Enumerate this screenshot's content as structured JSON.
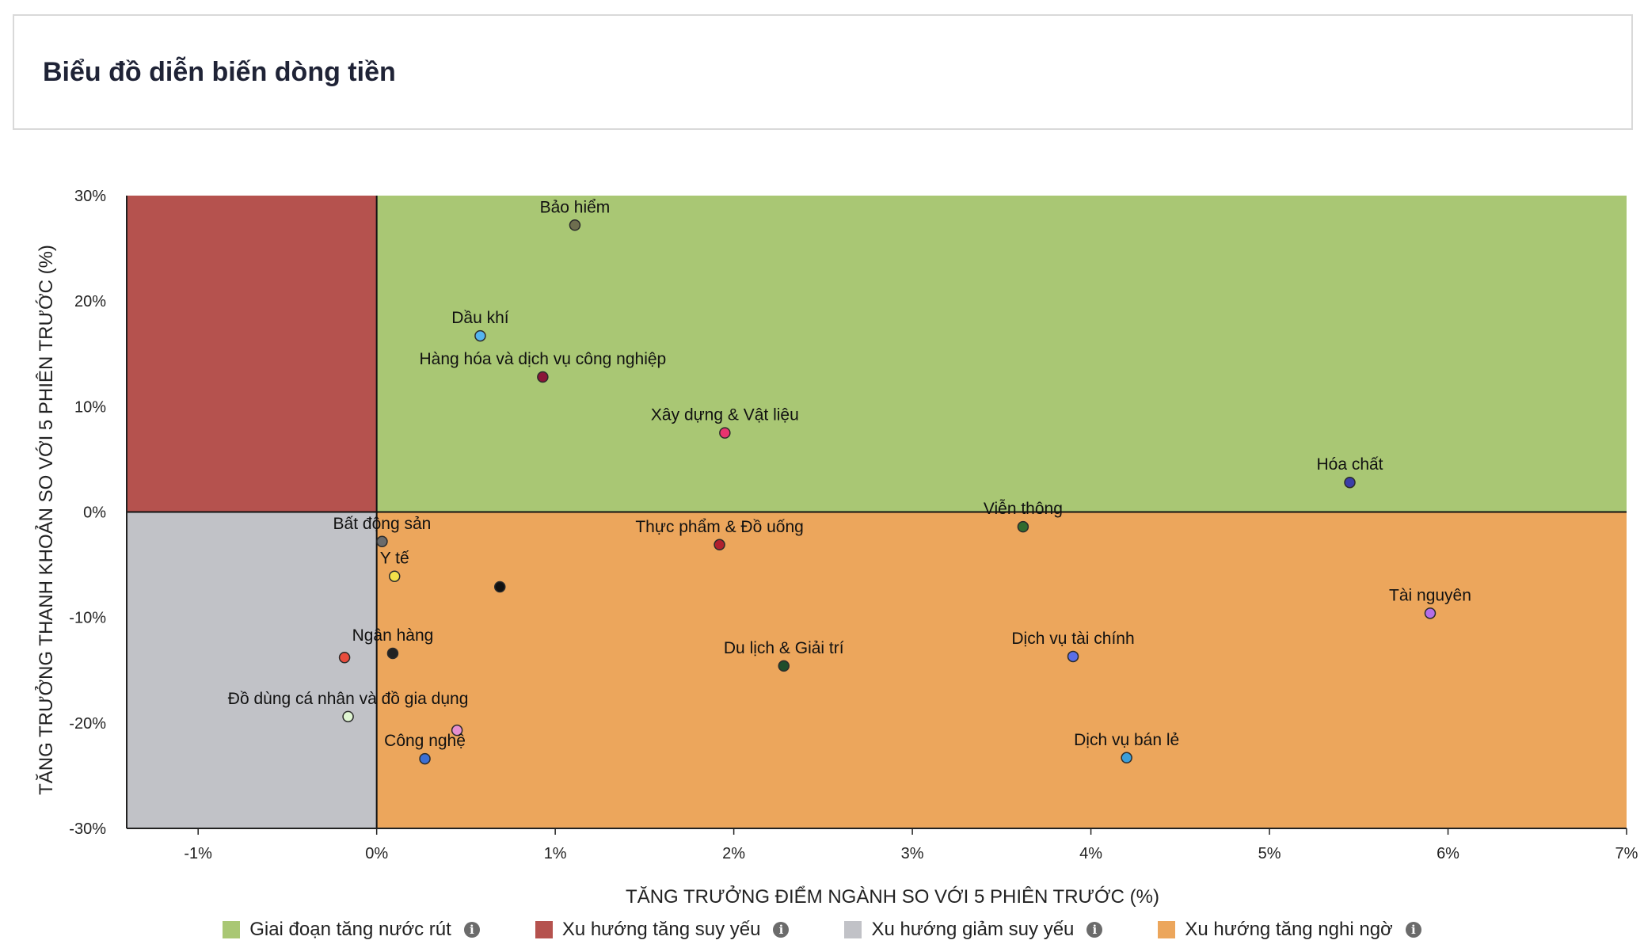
{
  "header": {
    "title": "Biểu đồ diễn biến dòng tiền"
  },
  "legend": [
    {
      "label": "Giai đoạn tăng nước rút",
      "color": "#a9c774",
      "icon": "info-icon"
    },
    {
      "label": "Xu hướng tăng suy yếu",
      "color": "#b5524e",
      "icon": "info-icon"
    },
    {
      "label": "Xu hướng giảm suy yếu",
      "color": "#c1c2c7",
      "icon": "info-icon"
    },
    {
      "label": "Xu hướng tăng nghi ngờ",
      "color": "#eca65c",
      "icon": "info-icon"
    }
  ],
  "chart_data": {
    "type": "scatter",
    "title": "",
    "xlabel": "TĂNG TRƯỞNG ĐIỂM NGÀNH SO VỚI 5 PHIÊN TRƯỚC (%)",
    "ylabel": "TĂNG TRƯỞNG THANH KHOẢN SO VỚI 5 PHIÊN TRƯỚC (%)",
    "xlim": [
      -1.4,
      7.0
    ],
    "ylim": [
      -30,
      30
    ],
    "x_ticks": [
      -1,
      0,
      1,
      2,
      3,
      4,
      5,
      6,
      7
    ],
    "x_tick_labels": [
      "-1%",
      "0%",
      "1%",
      "2%",
      "3%",
      "4%",
      "5%",
      "6%",
      "7%"
    ],
    "y_ticks": [
      30,
      20,
      10,
      0,
      -10,
      -20,
      -30
    ],
    "y_tick_labels": [
      "30%",
      "20%",
      "10%",
      "0%",
      "-10%",
      "-20%",
      "-30%"
    ],
    "grid": false,
    "legend_position": "bottom",
    "quadrants": [
      {
        "name": "Giai đoạn tăng nước rút",
        "x_range": [
          0,
          7.0
        ],
        "y_range": [
          0,
          30
        ],
        "color": "#a9c774"
      },
      {
        "name": "Xu hướng tăng suy yếu",
        "x_range": [
          -1.4,
          0
        ],
        "y_range": [
          0,
          30
        ],
        "color": "#b5524e"
      },
      {
        "name": "Xu hướng giảm suy yếu",
        "x_range": [
          -1.4,
          0
        ],
        "y_range": [
          -30,
          0
        ],
        "color": "#c1c2c7"
      },
      {
        "name": "Xu hướng tăng nghi ngờ",
        "x_range": [
          0,
          7.0
        ],
        "y_range": [
          -30,
          0
        ],
        "color": "#eca65c"
      }
    ],
    "points": [
      {
        "label": "Bảo hiểm",
        "x": 1.11,
        "y": 27.2,
        "color": "#6e6e4f"
      },
      {
        "label": "Dầu khí",
        "x": 0.58,
        "y": 16.7,
        "color": "#55b4f0"
      },
      {
        "label": "Hàng hóa và dịch vụ công nghiệp",
        "x": 0.93,
        "y": 12.8,
        "color": "#8a1538"
      },
      {
        "label": "Xây dựng & Vật liệu",
        "x": 1.95,
        "y": 7.5,
        "color": "#e8336f"
      },
      {
        "label": "Hóa chất",
        "x": 5.45,
        "y": 2.8,
        "color": "#3a3da8"
      },
      {
        "label": "Viễn thông",
        "x": 3.62,
        "y": -1.4,
        "color": "#2f6b2f"
      },
      {
        "label": "Bất động sản",
        "x": 0.03,
        "y": -2.8,
        "color": "#6b6b6b"
      },
      {
        "label": "Thực phẩm & Đồ uống",
        "x": 1.92,
        "y": -3.1,
        "color": "#b0202e"
      },
      {
        "label": "Y tế",
        "x": 0.1,
        "y": -6.1,
        "color": "#f2e04a"
      },
      {
        "label": "",
        "x": 0.69,
        "y": -7.1,
        "color": "#111111"
      },
      {
        "label": "Tài nguyên",
        "x": 5.9,
        "y": -9.6,
        "color": "#b46ee8"
      },
      {
        "label": "Ngân hàng",
        "x": 0.09,
        "y": -13.4,
        "color": "#222222"
      },
      {
        "label": "",
        "x": -0.18,
        "y": -13.8,
        "color": "#e84c3d"
      },
      {
        "label": "Dịch vụ tài chính",
        "x": 3.9,
        "y": -13.7,
        "color": "#5a6ee6"
      },
      {
        "label": "Du lịch & Giải trí",
        "x": 2.28,
        "y": -14.6,
        "color": "#1e4d2b"
      },
      {
        "label": "Đồ dùng cá nhân và đồ gia dụng",
        "x": -0.16,
        "y": -19.4,
        "color": "#dff5d2"
      },
      {
        "label": "",
        "x": 0.45,
        "y": -20.7,
        "color": "#e58fd0"
      },
      {
        "label": "Công nghệ",
        "x": 0.27,
        "y": -23.4,
        "color": "#3c6fd4"
      },
      {
        "label": "Dịch vụ bán lẻ",
        "x": 4.2,
        "y": -23.3,
        "color": "#3d9fd9"
      }
    ]
  }
}
